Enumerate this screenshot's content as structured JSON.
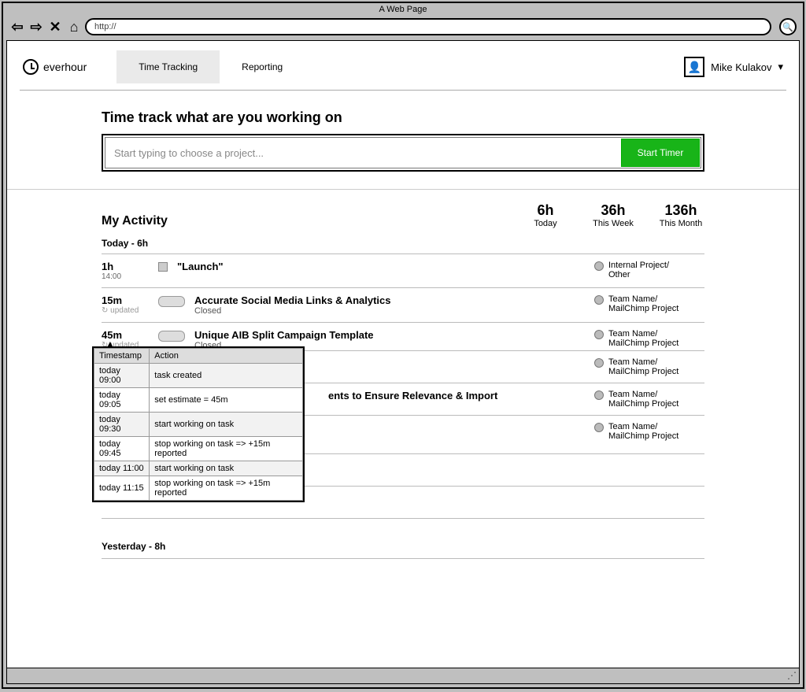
{
  "browser": {
    "title": "A Web Page",
    "url": "http://"
  },
  "brand": "everhour",
  "tabs": {
    "tracking": "Time Tracking",
    "reporting": "Reporting"
  },
  "user": {
    "name": "Mike Kulakov"
  },
  "heading": "Time track what are you working on",
  "input": {
    "placeholder": "Start typing to choose a project..."
  },
  "start_btn": {
    "label": "Start Timer",
    "bg": "#18b418"
  },
  "activity": {
    "title": "My Activity",
    "stats": {
      "today": {
        "val": "6h",
        "lbl": "Today"
      },
      "week": {
        "val": "36h",
        "lbl": "This Week"
      },
      "month": {
        "val": "136h",
        "lbl": "This Month"
      }
    },
    "today_label": "Today - 6h",
    "yesterday_label": "Yesterday - 8h"
  },
  "rows": [
    {
      "dur": "1h",
      "time": "14:00",
      "title": "\"Launch\"",
      "status": "",
      "proj1": "Internal Project/",
      "proj2": "Other",
      "marker": "sq"
    },
    {
      "dur": "15m",
      "upd": "updated",
      "title": "Accurate Social Media Links & Analytics",
      "status": "Closed",
      "proj1": "Team Name/",
      "proj2": "MailChimp Project",
      "marker": "scribble"
    },
    {
      "dur": "45m",
      "upd": "updated",
      "title": "Unique AIB Split Campaign Template",
      "status": "Closed",
      "proj1": "Team Name/",
      "proj2": "MailChimp Project",
      "marker": "scribble",
      "popup": true
    },
    {
      "dur": "",
      "title": "",
      "status": "",
      "proj1": "Team Name/",
      "proj2": "MailChimp Project"
    },
    {
      "dur": "",
      "title": "ents to Ensure Relevance & Import",
      "status": "",
      "proj1": "Team Name/",
      "proj2": "MailChimp Project",
      "partial": true
    },
    {
      "dur": "",
      "title": "",
      "status": "",
      "proj1": "Team Name/",
      "proj2": "MailChimp Project"
    }
  ],
  "popup": {
    "h1": "Timestamp",
    "h2": "Action",
    "rows": [
      {
        "ts": "today 09:00",
        "act": "task created"
      },
      {
        "ts": "today 09:05",
        "act": "set estimate = 45m"
      },
      {
        "ts": "today 09:30",
        "act": "start working on task"
      },
      {
        "ts": "today 09:45",
        "act": "stop working on task => +15m reported"
      },
      {
        "ts": "today 11:00",
        "act": "start working on task"
      },
      {
        "ts": "today 11:15",
        "act": "stop working on task => +15m reported"
      }
    ]
  }
}
